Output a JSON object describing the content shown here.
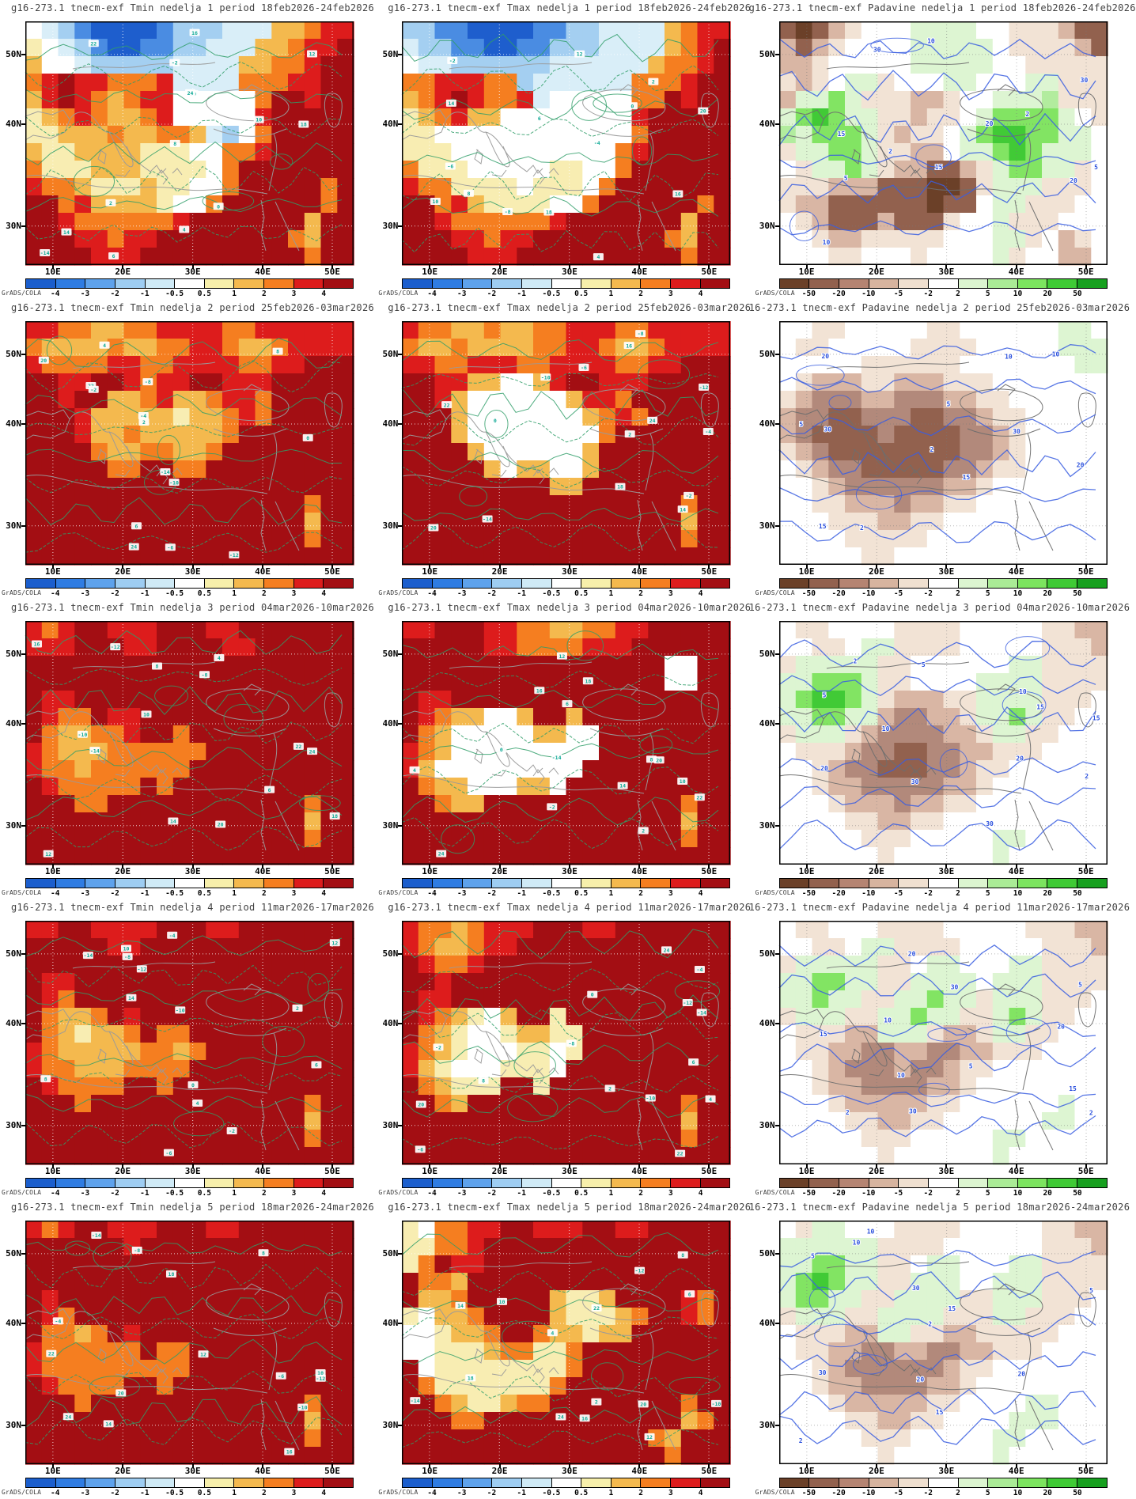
{
  "meta": {
    "grads_label": "GrADS/COLA"
  },
  "axes": {
    "lat_labels": [
      "50N",
      "40N",
      "30N"
    ],
    "lon_labels": [
      "10E",
      "20E",
      "30E",
      "40E",
      "50E"
    ]
  },
  "colorbars": {
    "temp": {
      "tick_labels": [
        "-4",
        "-3",
        "-2",
        "-1",
        "-0.5",
        "0.5",
        "1",
        "2",
        "3",
        "4"
      ],
      "colors": [
        "#1b5ecd",
        "#2f7ce2",
        "#5ea2ec",
        "#9ecdf2",
        "#cfeaf6",
        "#ffffff",
        "#f7efab",
        "#f4b94e",
        "#f57e20",
        "#dd1c1c",
        "#a30e13"
      ]
    },
    "precip": {
      "tick_labels": [
        "-50",
        "-20",
        "-10",
        "-5",
        "-2",
        "2",
        "5",
        "10",
        "20",
        "50"
      ],
      "colors": [
        "#6b4028",
        "#92614e",
        "#b58472",
        "#d7b49f",
        "#f0e0d0",
        "#ffffff",
        "#dcf5d0",
        "#aaeb96",
        "#7ce45f",
        "#3fca35",
        "#17a01f"
      ]
    }
  },
  "contour_labels": {
    "temp": [
      "-14",
      "-12",
      "-10",
      "-8",
      "-6",
      "-4",
      "-2",
      "0",
      "2",
      "4",
      "6",
      "8",
      "10",
      "12",
      "14",
      "16",
      "18",
      "20",
      "22",
      "24"
    ],
    "precip": [
      "2",
      "5",
      "10",
      "15",
      "20",
      "30"
    ]
  },
  "palettes": {
    "temp": {
      "K": "#a30e13",
      "R": "#dd1c1c",
      "O": "#f57e20",
      "Y": "#f4b94e",
      "C": "#f8edb2",
      "W": "#ffffff",
      "P": "#d9eef8",
      "L": "#a4cff1",
      "B": "#4a8ce2",
      "D": "#1e5ecd"
    },
    "precip": {
      "D": "#6b4028",
      "B": "#92614e",
      "M": "#b2897b",
      "T": "#d9b6a4",
      "F": "#f2e3d5",
      "W": "#ffffff",
      "G": "#ddf5d2",
      "g": "#b2ec9e",
      "H": "#82e463",
      "E": "#41ca36",
      "N": "#17a01f"
    }
  },
  "panels": [
    {
      "title": "g16-273.1 tnecm-exf Tmin nedelja 1 period 18feb2026-24feb2026",
      "type": "temp",
      "colorbar": "temp",
      "grid": [
        "WPLBDDDDBLLLPPPYYORR",
        "CWPLBDDBBLLPPPYYORRK",
        "YWWPLLLLLPPPPYYOORKK",
        "ORKRROOORPPPPOOORRKK",
        "YRKROYORRWWWWWOKKRKK",
        "CYOROYYORWWWWWRKKKKK",
        "CCYYYOYYOOYPLWOKKKKK",
        "YCCYYYYCCCWWOORKKKKK",
        "OCCCYYYCCCCWOKKKKKKK",
        "ROOYCCCYCCWWOKKKKKOK",
        "KKORYYYYCWWOKKKKKKOK",
        "KKROOOOOORKKKKKKKYKK",
        "KKKRRORRKKKKKKKKOYKK",
        "KKKKRRRKKKKKKKKKKOKK"
      ]
    },
    {
      "title": "g16-273.1 tnecm-exf Tmax nedelja 1 period 18feb2026-24feb2026",
      "type": "temp",
      "colorbar": "temp",
      "grid": [
        "LLBBDDDDBBLLPPPPYORR",
        "PLLBBDDBBLLLPPPPYORK",
        "WPPLLLLLLPPPPPPYOORK",
        "OORRROOLPPPPPPOOORKK",
        "YORKROORPWWWWWOOKRKK",
        "CYORYYWWWWWWWWRKKKKK",
        "CCWWWWWWWWWWWWOKKKKK",
        "CCCWWWWWWWWWWORKKKKK",
        "OCCCWWWWWCCWWOKKKKKK",
        "ROOCCCCWCCCWOKKKKKKK",
        "KKORYCCCCWWOKKKKKKOK",
        "KKROOOOOORKKKKKKKYKK",
        "KKKRRORRKKKKKKKKOYKK",
        "KKKKRRRKKKKKKKKKKOKK"
      ]
    },
    {
      "title": "g16-273.1 tnecm-exf Padavine nedelja 1 period 18feb2026-24feb2026",
      "type": "precip",
      "colorbar": "precip",
      "grid": [
        "BDBTFWWWGGGGWWFFFTBB",
        "TBTFWWWWGGGGGWFFFFTB",
        "TTFWWWWWGGGGGWWFFFFF",
        "FTFWGGFWWWGGWWWGGFFF",
        "TGGHGFFFTTFWWGGGgFFF",
        "GHEHGGFFTFFWGHHHHGWF",
        "gGHHHGFTFFWGHEEHHGGW",
        "FGGHHGFFTTWGGHEHGGGW",
        "WFGGHGFTTBBTFGHHGGFW",
        "FFFTTTBBBDDBFGGGFFFW",
        "FTTBBBBBBDBBWGGFFFWW",
        "WFTBBBTBBBFWWGFFFWWW",
        "WWFTTFFFFFWWWGGFWTFW",
        "WWWFFWWWFWWWWGFWWTTW"
      ]
    },
    {
      "title": "g16-273.1 tnecm-exf Tmin nedelja 2 period 25feb2026-03mar2026",
      "type": "temp",
      "colorbar": "temp",
      "grid": [
        "RROOYYOORRRROORRRRRR",
        "OYYYYOYYOORROYYORRRR",
        "ROOOORROORRRROORRKKK",
        "KKRRKKRORRKKRRRKKKKK",
        "KKRKKYYORYYORROKKKKK",
        "KKKRYYYYYCYYOROKKKKK",
        "KKKRYYOYYYYYOKKKKKKK",
        "KKKKOYYOOYYOKKKKKKKK",
        "KKKKKOOKKOOKKKKKKKKK",
        "KKKKKKKKKKKKKKKKKKKK",
        "KKKKKKKKKKKKKKKKKOKK",
        "KKKKKKKKKKKKKKKKKYKK",
        "KKKKKKKKKKKKKKKKKOKK",
        "KKKKKKKKKKKKKKKKKKKK"
      ]
    },
    {
      "title": "g16-273.1 tnecm-exf Tmax nedelja 2 period 25feb2026-03mar2026",
      "type": "temp",
      "colorbar": "temp",
      "grid": [
        "ROOYYOYYOORRROORRRRR",
        "OYYOYYYYOORROYYORRRR",
        "RROORRROORRRROORRKKK",
        "KKRRYYWWYRKKRRRKKKKK",
        "KKRYWWWWWWYRROKKKKKK",
        "KKKYWWWWWWWYOROKKKKK",
        "KKKYWWWWWWWWOKKKKKKK",
        "KKKKYWWWWWWYKKKKKKKK",
        "KKKKKYWYYWWYKKKKKKKK",
        "KKKKKKKKKYYKKKKKKKKK",
        "KKKKKKKKKKKKKKKKKOKK",
        "KKKKKKKKKKKKKKKKKYKK",
        "KKKKKKKKKKKKKKKKKOKK",
        "KKKKKKKKKKKKKKKKKKKK"
      ]
    },
    {
      "title": "16-273.1 tnecm-exf Padavine nedelja 2 period 25feb2026-03mar2026",
      "type": "precip",
      "colorbar": "precip",
      "grid": [
        "WWFFWWWWWFFWWWWWWGGW",
        "WFFWWWWWFFFFWWWWWGGG",
        "WWWWWFFFFFFWWWWWWWGG",
        "WFTTTFFTTTFFFWWWWWWW",
        "FTMMMTTMMMTTFFWWWWWW",
        "TMMBBMMMBBMMTFFWWWWW",
        "TMBBBBMBBBBMMTFWWWWW",
        "FTMBBBBBBBBMMTFWWWWW",
        "WFTMMBBBBBMMTFFWWWWW",
        "WWFTMMMMMMTTFWWWWWWW",
        "WWFFTTTMTTFFWWWWWWWW",
        "WWWFFFTTFFWWWWWWWWWW",
        "WWWWFFFFFWWWWWWWWWWW",
        "WWWWWFFWWWWWWWWWWWWW"
      ]
    },
    {
      "title": "g16-273.1 tnecm-exf Tmin nedelja 3 period 04mar2026-10mar2026",
      "type": "temp",
      "colorbar": "temp",
      "grid": [
        "RORKKRRRKKKRRKKKKKKK",
        "RRRKKKRRKKKKRRKKKKKK",
        "KKKKKKKKKKKKKKKKKKKK",
        "KKKKKKKKKKKKKKKKKKKK",
        "KRRKKKKKKKKKKKKKKKKK",
        "KROOKRRKKKKKKKKKKKKK",
        "KOYYOORKKOKKKKKKKKKK",
        "ROYYYOOOOOOKKKKKKKKK",
        "ROOYOOOOOOKKKKKKKKKK",
        "KROOOOOKOKKKKKKKKKKK",
        "KKKOOKKKKKKKKKKKKOKK",
        "KKKKKKKKKKKKKKKKKYKK",
        "KKKKKKKKKKKKKKKKKOKK",
        "KKKKKKKKKKKKKKKKKKKK"
      ]
    },
    {
      "title": "g16-273.1 tnecm-exf Tmax nedelja 3 period 04mar2026-10mar2026",
      "type": "temp",
      "colorbar": "temp",
      "grid": [
        "RRKKKRROOYYOORRKKKKK",
        "KKKKKRROOOORRRKKKKKK",
        "KKKKKKKKKKKKKKKKWWKK",
        "KKKKKKKKKKKKKKKKWWKK",
        "KRRKKKKKKKKKKKKKKKKK",
        "KROYYWWYKKYKKKKKKKKK",
        "KOYWWWWWYYWWKKKKKKKK",
        "ROYWWWWWWWWWKKKKKKKK",
        "RYWWWWWWWWWKKKKKKKKK",
        "KOYYWWWYYWKKKKKKKKKK",
        "KKOYYKKKKKKKKKKKKOKK",
        "KKKKKKKKKKKKKKKKKYKK",
        "KKKKKKKKKKKKKKKKKOKK",
        "KKKKKKKKKKKKKKKKKKKK"
      ]
    },
    {
      "title": "16-273.1 tnecm-exf Padavine nedelja 3 period 04mar2026-10mar2026",
      "type": "precip",
      "colorbar": "precip",
      "grid": [
        "WFFWWWWFFFFWWWWWFFTT",
        "WWFFWGGFFFFWWWWWFFFT",
        "FGGGGGFFWWWWWWGGFFFF",
        "GGHHHGFFWWWWGGGGFFFF",
        "GHEEHGFTTTFFGGGGFFFW",
        "GGHHGGTMMTTFGGHGFFWW",
        "FGGGFTMMMMTTFGGFFWWW",
        "WFFFTMMBBMMTTFFFWWWW",
        "WWFTMMBBBMMTFFWWWWWW",
        "WWFTTMMMMMTTFWWWWWWW",
        "WWWFTTTMTTFFWWWWWWWW",
        "WWWWFFTTFFWWWWWWWWWW",
        "WWWWWFFFWWWWWGGWWWWW",
        "WWWWWWFWWWWWWGWWWWWW"
      ]
    },
    {
      "title": "g16-273.1 tnecm-exf Tmin nedelja 4 period 11mar2026-17mar2026",
      "type": "temp",
      "colorbar": "temp",
      "grid": [
        "RRKKRRRRKKKRRKKKKKKK",
        "KKKKKRRKKKKKKKKKKKKK",
        "KKKKKKKKKKKKKKKKKKKK",
        "KRRKKKKKKKKKKKKKKKKK",
        "KROKKKKKKKKKKKKKKKKK",
        "KOYYOKRKKKKKKKKKKKKK",
        "KOYCYYOKOOKKKKKKKKKK",
        "ROYYYYYOOYOKKKKKKKKK",
        "ROOYYYOOOOKKKKKKKKKK",
        "KROOOOKKOKKKKKKKKKKK",
        "KKKOKKKKKKKKKKKKKOKK",
        "KKKKKKKKKKKKKKKKKYKK",
        "KKKKKKKKKKKKKKKKKOKK",
        "KKKKKKKKKKKKKKKKKKKK"
      ]
    },
    {
      "title": "g16-273.1 tnecm-exf Tmax nedelja 4 period 11mar2026-17mar2026",
      "type": "temp",
      "colorbar": "temp",
      "grid": [
        "ROOYORRRKKKRRKKKKKKK",
        "ROYYORRKKKKKKKKKKKKK",
        "KROORKKKKKKKKKKKKKKK",
        "KKRKKKKKKKKKKKKKKKKK",
        "KRRKKKKKKKKKKKKKKKKK",
        "KROYCWYKKCKKKKKKKKKK",
        "KOYCWWCYYCCKKKKKKKKK",
        "ROYCWWWCCWCKKKKKKKKK",
        "RYCWWWCCCWKKKKKKKKKK",
        "KOYCCCKKCKKKKKKKKKKK",
        "KKOYKKKKKKKKKKKKKOKK",
        "KKKKKKKKKKKKKKKKKYKK",
        "KKKKKKKKKKKKKKKKKOKK",
        "KKKKKKKKKKKKKKKKKKKK"
      ]
    },
    {
      "title": "16-273.1 tnecm-exf Padavine nedelja 4 period 11mar2026-17mar2026",
      "type": "precip",
      "colorbar": "precip",
      "grid": [
        "WFFWWWFFFFWWWWWFFFTT",
        "WWFFWGGFFFFWWWWWFFFT",
        "FGGGGGFFWGGWWWGGFFFF",
        "GGHHGGFFGGGGWGGGFFFF",
        "GGHGGFFGGHGGFGGGFFFW",
        "FGGGFFGGHGGFFGHGFFWW",
        "WFFFTTGGGFTTFGGFFWWW",
        "WFFTTMMTTMMTTFFFWWWW",
        "WWFTMMMTMMTFFWWWWWWW",
        "WWFTTMMMMTTFWWWWWWWW",
        "WWWFTTTTTFFWWWWWWGWW",
        "WWWWFFTTFFWWWWWWGGWW",
        "WWWWWFFFWWWWWGGWWWWW",
        "WWWWWWFWWWWWWGWWWWWW"
      ]
    },
    {
      "title": "g16-273.1 tnecm-exf Tmin nedelja 5 period 18mar2026-24mar2026",
      "type": "temp",
      "colorbar": "temp",
      "grid": [
        "RORKKRRRKKKRRKKKKKKK",
        "KKKKKKRKKKKKKKKKKKKK",
        "KKKKKKKKKKKKKKKKKKKK",
        "KKKKKKKKKKKKKKKKKKKK",
        "KRKKKKKKKKKKKKKKKKKK",
        "KROKKKKKKKKKKKKKKKKK",
        "KOOYOKRKKKKKKKKKKKKK",
        "ROOOOOOKOOKKKKKKKKKK",
        "ROOOOOOOOOKKKKKKKKKK",
        "KROOOOKKOKKKKKKKKKKK",
        "KKKOKKKKKKKKKKKKKOKK",
        "KKKKKKKKKKKKKKKKKYKK",
        "KKKKKKKKKKKKKKKKKOKK",
        "KKKKKKKKKKKKKKKKKKKK"
      ]
    },
    {
      "title": "g16-273.1 tnecm-exf Tmax nedelja 5 period 18mar2026-24mar2026",
      "type": "temp",
      "colorbar": "temp",
      "grid": [
        "CWOORRKKRRRKKRRKKKKK",
        "CCOORKKKKKKKKKKKKKKK",
        "COKRRKKKKKKKKKKKKKKK",
        "KOOYKKKKKKKKKKKKKKKK",
        "KYYOKKKKKYCCYKKKKROK",
        "CWYYOKKKKYCCCYOKKROK",
        "WWCYYOKKOYYCYYKKKKKK",
        "WWCCCYOOCCOKKKKKKKKK",
        "KWCCCCCCCCOKKKKKKKKK",
        "KOCCCCCCCOKKKKKKKKKK",
        "KKOYCCYOOKKKKKKKKOKK",
        "KKKOOKKKKKKKKKKKKYOK",
        "KKKKKKKKKKKKKKKOYKKK",
        "KKKKKKKKKKKKKKKKOKKK"
      ]
    },
    {
      "title": "16-273.1 tnecm-exf Padavine nedelja 5 period 18mar2026-24mar2026",
      "type": "precip",
      "colorbar": "precip",
      "grid": [
        "WFGGWWWFFFFWWWWWFFTT",
        "GGGGGGFFFFWWWWWWFFFT",
        "GGHHGGFFWGGWWWGGFFFF",
        "GHEHGGFFGGGWWGGGFFFF",
        "GHHGGFFGGGGFFGGGFFFW",
        "FGGGFFGGGGFFFGGFFFWW",
        "WFFFTTGGFFTTFFFFFWWW",
        "WFFTTMMTTMMTTFFFWWWW",
        "WWFTMMMMMMTFFWWWWWWW",
        "WWFTTMMMMTTFWWWWWWWW",
        "WWWFTTTTTFFWWWWGGWWW",
        "WWWWFFTTFFWWWWGGGWWW",
        "WWWWWFFFWWWWWGGWWWWW",
        "WWWWWWFWWWWWWGWWWWWW"
      ]
    }
  ]
}
